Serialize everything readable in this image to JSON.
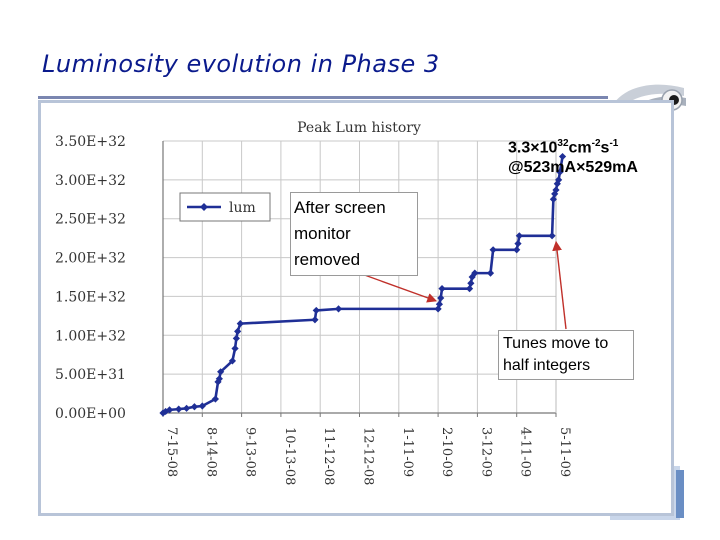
{
  "slide": {
    "title": "Luminosity evolution in Phase 3"
  },
  "chart_data": {
    "type": "line",
    "title": "Peak Lum history",
    "xlabel": "",
    "ylabel": "",
    "x_tick_labels": [
      "7-15-08",
      "8-14-08",
      "9-13-08",
      "10-13-08",
      "11-12-08",
      "12-12-08",
      "1-11-09",
      "2-10-09",
      "3-12-09",
      "4-11-09",
      "5-11-09"
    ],
    "y_tick_labels": [
      "0.00E+00",
      "5.00E+31",
      "1.00E+32",
      "1.50E+32",
      "2.00E+32",
      "2.50E+32",
      "3.00E+32",
      "3.50E+32"
    ],
    "ylim": [
      0,
      3.5e+32
    ],
    "legend": {
      "placement": "top-left",
      "entries": [
        "lum"
      ]
    },
    "grid": true,
    "series": [
      {
        "name": "lum",
        "color": "#1f2f96",
        "points": [
          [
            "7-15-08",
            0.0
          ],
          [
            "7-17-08",
            2e+30
          ],
          [
            "7-20-08",
            4e+30
          ],
          [
            "7-27-08",
            5e+30
          ],
          [
            "8-02-08",
            6e+30
          ],
          [
            "8-08-08",
            8e+30
          ],
          [
            "8-14-08",
            9e+30
          ],
          [
            "8-24-08",
            1.8e+31
          ],
          [
            "8-26-08",
            4e+31
          ],
          [
            "8-27-08",
            4.4e+31
          ],
          [
            "8-28-08",
            5.3e+31
          ],
          [
            "9-06-08",
            6.7e+31
          ],
          [
            "9-08-08",
            8.3e+31
          ],
          [
            "9-09-08",
            9.6e+31
          ],
          [
            "9-10-08",
            1.05e+32
          ],
          [
            "9-12-08",
            1.15e+32
          ],
          [
            "11-08-08",
            1.2e+32
          ],
          [
            "11-09-08",
            1.32e+32
          ],
          [
            "11-26-08",
            1.34e+32
          ],
          [
            "2-10-09",
            1.34e+32
          ],
          [
            "2-11-09",
            1.4e+32
          ],
          [
            "2-12-09",
            1.48e+32
          ],
          [
            "2-13-09",
            1.6e+32
          ],
          [
            "3-06-09",
            1.6e+32
          ],
          [
            "3-07-09",
            1.67e+32
          ],
          [
            "3-08-09",
            1.75e+32
          ],
          [
            "3-10-09",
            1.8e+32
          ],
          [
            "3-22-09",
            1.8e+32
          ],
          [
            "3-24-09",
            2.1e+32
          ],
          [
            "4-11-09",
            2.1e+32
          ],
          [
            "4-12-09",
            2.18e+32
          ],
          [
            "4-13-09",
            2.28e+32
          ],
          [
            "5-08-09",
            2.28e+32
          ],
          [
            "5-09-09",
            2.75e+32
          ],
          [
            "5-10-09",
            2.82e+32
          ],
          [
            "5-11-09",
            2.87e+32
          ],
          [
            "5-12-09",
            2.95e+32
          ],
          [
            "5-13-09",
            3e+32
          ],
          [
            "5-14-09",
            3.1e+32
          ],
          [
            "5-16-09",
            3.3e+32
          ]
        ]
      }
    ],
    "annotations": [
      {
        "id": "peak",
        "lines": [
          "3.3×10",
          "32",
          "cm",
          "-2",
          "s",
          "-1",
          "@523mA×529mA"
        ]
      },
      {
        "id": "screen",
        "text": "After screen monitor removed",
        "points_to": [
          "2-10-09",
          1.34e+32
        ]
      },
      {
        "id": "tunes",
        "text": "Tunes move to half integers",
        "points_to": [
          "5-08-09",
          2.28e+32
        ]
      }
    ]
  }
}
